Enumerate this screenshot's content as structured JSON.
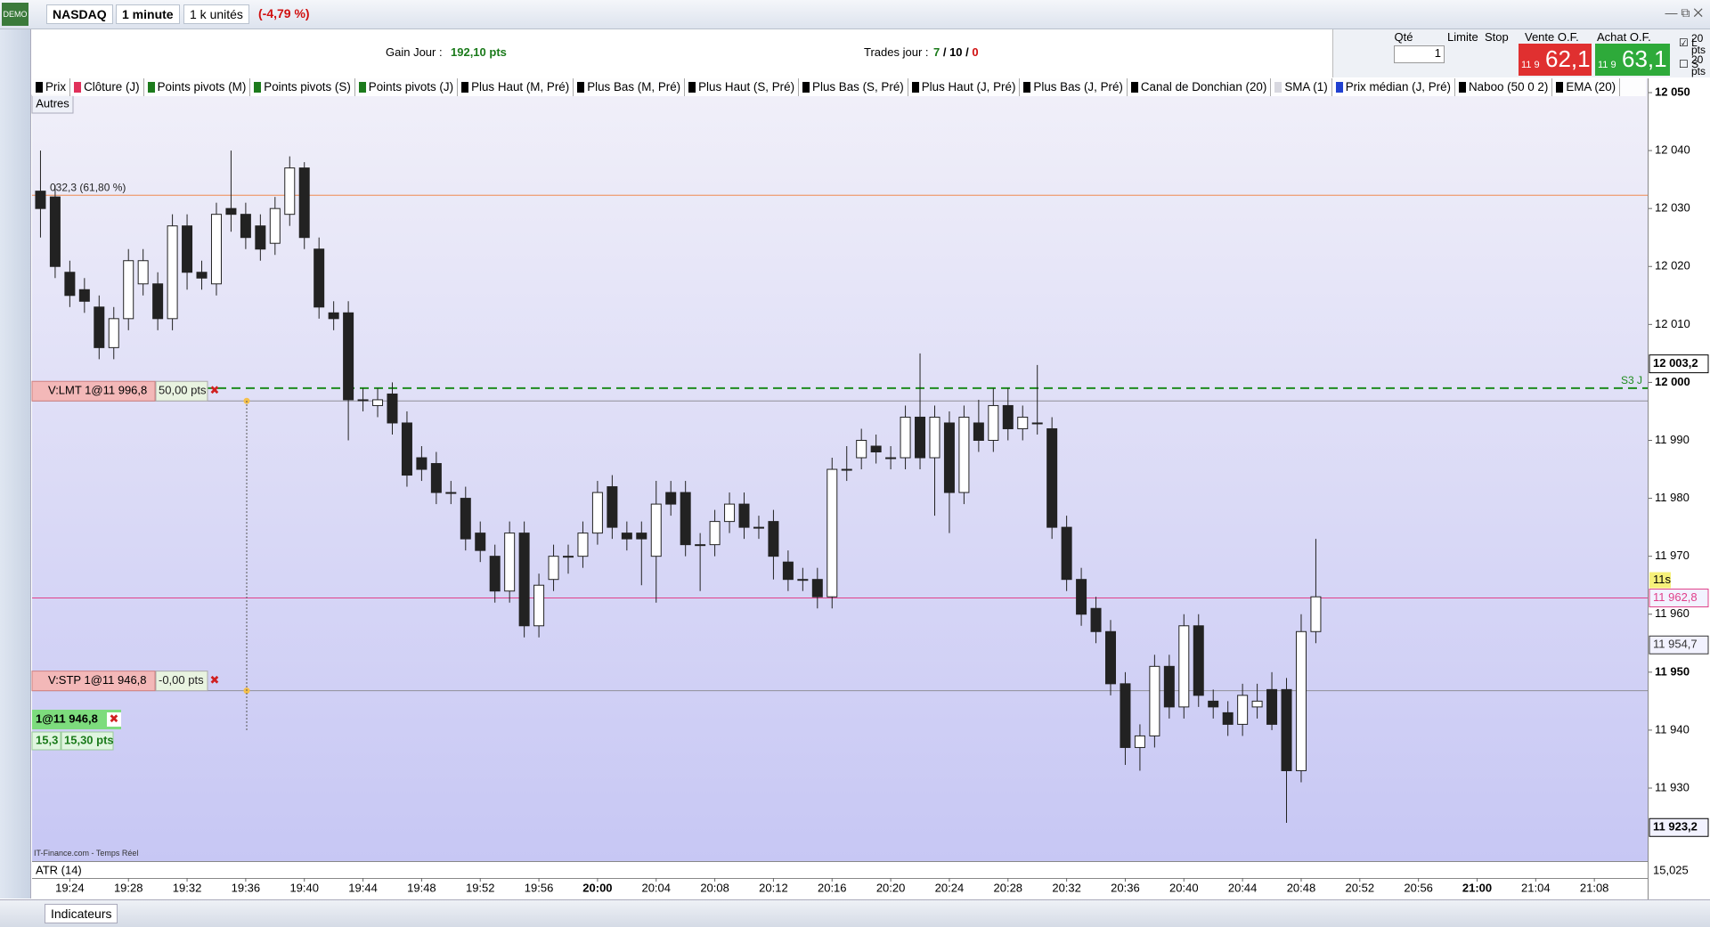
{
  "toolbar": {
    "instrument": "NASDAQ",
    "period": "1 minute",
    "units": "1 k unités",
    "change": "(-4,79 %)"
  },
  "info": {
    "gain_label": "Gain Jour :",
    "gain_value": "192,10 pts",
    "trades_label": "Trades jour :",
    "trades_won": "7",
    "trades_total": "10",
    "trades_lost": "0"
  },
  "order_panel": {
    "qty_label": "Qté",
    "qty": "1",
    "limit_label": "Limite",
    "stop_label": "Stop",
    "sell_label": "Vente O.F.",
    "sell_prefix": "11 9",
    "sell_price": "62,1",
    "buy_label": "Achat O.F.",
    "buy_prefix": "11 9",
    "buy_price": "63,1",
    "long_label": "L",
    "long_pts": "20",
    "short_label": "S",
    "short_pts": "20",
    "pts_unit": "pts"
  },
  "indicators": [
    {
      "name": "Prix",
      "color": "#000000"
    },
    {
      "name": "Clôture (J)",
      "color": "#e0305a"
    },
    {
      "name": "Points pivots (M)",
      "color": "#1c7a1c"
    },
    {
      "name": "Points pivots (S)",
      "color": "#1c7a1c"
    },
    {
      "name": "Points pivots (J)",
      "color": "#1c7a1c"
    },
    {
      "name": "Plus Haut (M, Pré)",
      "color": "#000000"
    },
    {
      "name": "Plus Bas (M, Pré)",
      "color": "#000000"
    },
    {
      "name": "Plus Haut (S, Pré)",
      "color": "#000000"
    },
    {
      "name": "Plus Bas (S, Pré)",
      "color": "#000000"
    },
    {
      "name": "Plus Haut (J, Pré)",
      "color": "#000000"
    },
    {
      "name": "Plus Bas (J, Pré)",
      "color": "#000000"
    },
    {
      "name": "Canal de Donchian (20)",
      "color": "#000000"
    },
    {
      "name": "SMA (1)",
      "color": "#d8d8e0"
    },
    {
      "name": "Prix médian (J, Pré)",
      "color": "#2040d0"
    },
    {
      "name": "Naboo (50 0 2)",
      "color": "#000000"
    },
    {
      "name": "EMA (20)",
      "color": "#000000"
    }
  ],
  "others": "Autres",
  "chart_data": {
    "type": "candlestick",
    "up_color": "#ffffff",
    "down_color": "#222222",
    "x": [
      "19:22",
      "19:23",
      "19:24",
      "19:25",
      "19:26",
      "19:27",
      "19:28",
      "19:29",
      "19:30",
      "19:31",
      "19:32",
      "19:33",
      "19:34",
      "19:35",
      "19:36",
      "19:37",
      "19:38",
      "19:39",
      "19:40",
      "19:41",
      "19:42",
      "19:43",
      "19:44",
      "19:45",
      "19:46",
      "19:47",
      "19:48",
      "19:49",
      "19:50",
      "19:51",
      "19:52",
      "19:53",
      "19:54",
      "19:55",
      "19:56",
      "19:57",
      "19:58",
      "19:59",
      "20:00",
      "20:01",
      "20:02",
      "20:03",
      "20:04",
      "20:05",
      "20:06",
      "20:07",
      "20:08",
      "20:09",
      "20:10",
      "20:11",
      "20:12",
      "20:13",
      "20:14",
      "20:15",
      "20:16",
      "20:17",
      "20:18",
      "20:19",
      "20:20",
      "20:21",
      "20:22",
      "20:23",
      "20:24",
      "20:25",
      "20:26",
      "20:27",
      "20:28",
      "20:29",
      "20:30",
      "20:31",
      "20:32",
      "20:33",
      "20:34",
      "20:35",
      "20:36",
      "20:37",
      "20:38",
      "20:39",
      "20:40",
      "20:41",
      "20:42",
      "20:43",
      "20:44",
      "20:45",
      "20:46",
      "20:47",
      "20:48",
      "20:49"
    ],
    "open": [
      12033,
      12032,
      12019,
      12016,
      12013,
      12006,
      12011,
      12017,
      12017,
      12011,
      12027,
      12019,
      12017,
      12030,
      12029,
      12027,
      12024,
      12029,
      12037,
      12023,
      12012,
      12012,
      11997,
      11996,
      11998,
      11993,
      11987,
      11986,
      11981,
      11980,
      11974,
      11970,
      11964,
      11974,
      11958,
      11966,
      11970,
      11970,
      11974,
      11982,
      11974,
      11974,
      11970,
      11981,
      11981,
      11972,
      11972,
      11976,
      11979,
      11975,
      11976,
      11969,
      11966,
      11966,
      11963,
      11985,
      11987,
      11989,
      11987,
      11987,
      11994,
      11987,
      11993,
      11981,
      11993,
      11990,
      11996,
      11992,
      11993,
      11992,
      11975,
      11966,
      11961,
      11957,
      11948,
      11937,
      11939,
      11951,
      11944,
      11958,
      11945,
      11943,
      11941,
      11944,
      11947,
      11947,
      11933,
      11957
    ],
    "high": [
      12040,
      12034,
      12021,
      12018,
      12015,
      12013,
      12023,
      12023,
      12019,
      12029,
      12029,
      12021,
      12031,
      12040,
      12031,
      12029,
      12032,
      12039,
      12038,
      12025,
      12014,
      12014,
      11999,
      11999,
      12000,
      11995,
      11989,
      11988,
      11983,
      11982,
      11976,
      11972,
      11976,
      11976,
      11967,
      11972,
      11972,
      11976,
      11983,
      11984,
      11976,
      11976,
      11983,
      11983,
      11983,
      11974,
      11978,
      11981,
      11981,
      11977,
      11978,
      11971,
      11968,
      11968,
      11987,
      11989,
      11992,
      11991,
      11989,
      11996,
      12005,
      11996,
      11995,
      11996,
      11997,
      11999,
      11999,
      11996,
      12003,
      11994,
      11977,
      11968,
      11963,
      11959,
      11950,
      11941,
      11953,
      11953,
      11960,
      11960,
      11947,
      11945,
      11948,
      11948,
      11950,
      11949,
      11960,
      11973
    ],
    "low": [
      12025,
      12018,
      12013,
      12012,
      12004,
      12004,
      12009,
      12015,
      12009,
      12009,
      12016,
      12016,
      12015,
      12026,
      12023,
      12021,
      12022,
      12027,
      12023,
      12011,
      12009,
      11990,
      11995,
      11994,
      11991,
      11982,
      11983,
      11979,
      11979,
      11971,
      11969,
      11962,
      11962,
      11956,
      11956,
      11964,
      11967,
      11968,
      11972,
      11973,
      11971,
      11965,
      11962,
      11977,
      11970,
      11964,
      11970,
      11974,
      11973,
      11973,
      11966,
      11964,
      11964,
      11961,
      11961,
      11983,
      11985,
      11986,
      11985,
      11985,
      11985,
      11977,
      11974,
      11979,
      11988,
      11988,
      11990,
      11990,
      11991,
      11973,
      11964,
      11958,
      11955,
      11946,
      11934,
      11933,
      11937,
      11942,
      11942,
      11944,
      11942,
      11939,
      11939,
      11942,
      11940,
      11924,
      11931,
      11955
    ],
    "close": [
      12030,
      12020,
      12015,
      12014,
      12006,
      12011,
      12021,
      12021,
      12011,
      12027,
      12019,
      12018,
      12029,
      12029,
      12025,
      12023,
      12030,
      12037,
      12025,
      12013,
      12011,
      11997,
      11997,
      11997,
      11993,
      11984,
      11985,
      11981,
      11981,
      11973,
      11971,
      11964,
      11974,
      11958,
      11965,
      11970,
      11970,
      11974,
      11981,
      11975,
      11973,
      11973,
      11979,
      11979,
      11972,
      11972,
      11976,
      11979,
      11975,
      11975,
      11970,
      11966,
      11966,
      11963,
      11985,
      11985,
      11990,
      11988,
      11987,
      11994,
      11987,
      11994,
      11981,
      11994,
      11990,
      11996,
      11992,
      11994,
      11993,
      11975,
      11966,
      11960,
      11957,
      11948,
      11937,
      11939,
      11951,
      11944,
      11958,
      11946,
      11944,
      11941,
      11946,
      11945,
      11941,
      11933,
      11957,
      11963
    ],
    "xlim": [
      "19:21",
      "21:12"
    ],
    "xticks": [
      "19:24",
      "19:28",
      "19:32",
      "19:36",
      "19:40",
      "19:44",
      "19:48",
      "19:52",
      "19:56",
      "20:00",
      "20:04",
      "20:08",
      "20:12",
      "20:16",
      "20:20",
      "20:24",
      "20:28",
      "20:32",
      "20:36",
      "20:40",
      "20:44",
      "20:48",
      "20:52",
      "20:56",
      "21:00",
      "21:04",
      "21:08"
    ],
    "ylim": [
      11917.4,
      12050
    ],
    "yticks": [
      {
        "value": 12050,
        "label": "12 050"
      },
      {
        "value": 12040,
        "label": "12 040"
      },
      {
        "value": 12030,
        "label": "12 030"
      },
      {
        "value": 12020,
        "label": "12 020"
      },
      {
        "value": 12010,
        "label": "12 010"
      },
      {
        "value": 12000,
        "label": "12 000"
      },
      {
        "value": 11990,
        "label": "11 990"
      },
      {
        "value": 11980,
        "label": "11 980"
      },
      {
        "value": 11970,
        "label": "11 970"
      },
      {
        "value": 11960,
        "label": "11 960"
      },
      {
        "value": 11950,
        "label": "11 950"
      },
      {
        "value": 11940,
        "label": "11 940"
      },
      {
        "value": 11930,
        "label": "11 930"
      }
    ],
    "grid": false,
    "levels": [
      {
        "value": 12032.3,
        "label": "032,3 (61,80 %)",
        "color": "#f08a50",
        "style": "solid"
      },
      {
        "value": 11999,
        "label": "S3 J",
        "color": "#1e8c1e",
        "style": "dashed"
      },
      {
        "value": 11962.8,
        "color": "#e0408a",
        "style": "solid"
      }
    ],
    "price_tags": [
      {
        "value": 12003.2,
        "label": "12 003,2",
        "color": "#000000"
      },
      {
        "value": 11962.8,
        "label": "11 962,8",
        "color": "#e0408a"
      },
      {
        "value": 11954.7,
        "label": "11 954,7",
        "color": "#333333"
      },
      {
        "value": 11923.2,
        "label": "11 923,2",
        "color": "#000000"
      }
    ],
    "countdown": "11s",
    "source": "IT-Finance.com - Temps Réel",
    "atr": {
      "label": "ATR (14)",
      "value_label": "15,025"
    }
  },
  "orders": [
    {
      "value": 11996.8,
      "label": "V:LMT 1@11 996,8",
      "pts": "50,00 pts"
    },
    {
      "value": 11946.8,
      "label": "V:STP 1@11 946,8",
      "pts": "-0,00 pts"
    }
  ],
  "position": {
    "label": "1@11 946,8",
    "value_a": "15,3",
    "value_b": "15,30 pts"
  },
  "footer": {
    "indicators_button": "Indicateurs"
  }
}
